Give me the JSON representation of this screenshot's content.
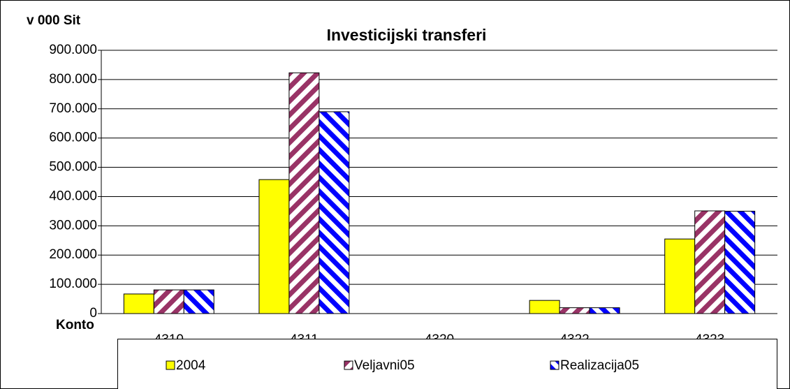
{
  "chart_data": {
    "type": "bar",
    "title": "Investicijski transferi",
    "y_label": "v 000 Sit",
    "x_label": "Konto",
    "categories": [
      "4310",
      "4311",
      "4320",
      "4322",
      "4323"
    ],
    "series": [
      {
        "name": "2004",
        "color": "#ffff00",
        "pattern": "solid",
        "values": [
          67000,
          458000,
          0,
          45000,
          255000
        ]
      },
      {
        "name": "Veljavni05",
        "color": "#993366",
        "pattern": "diagonal-down",
        "values": [
          81000,
          823000,
          0,
          20000,
          351000
        ]
      },
      {
        "name": "Realizacija05",
        "color": "#0000ff",
        "pattern": "diagonal-up",
        "values": [
          81000,
          690000,
          0,
          20000,
          350000
        ]
      }
    ],
    "ylim": [
      0,
      900000
    ],
    "yticks": [
      0,
      {
        "value": 100000,
        "label": "100.000"
      },
      {
        "value": 200000,
        "label": "200.000"
      },
      {
        "value": 300000,
        "label": "300.000"
      },
      {
        "value": 400000,
        "label": "400.000"
      },
      {
        "value": 500000,
        "label": "500.000"
      },
      {
        "value": 600000,
        "label": "600.000"
      },
      {
        "value": 700000,
        "label": "700.000"
      },
      {
        "value": 800000,
        "label": "800.000"
      },
      {
        "value": 900000,
        "label": "900.000"
      }
    ],
    "grid": true,
    "legend": "bottom"
  }
}
